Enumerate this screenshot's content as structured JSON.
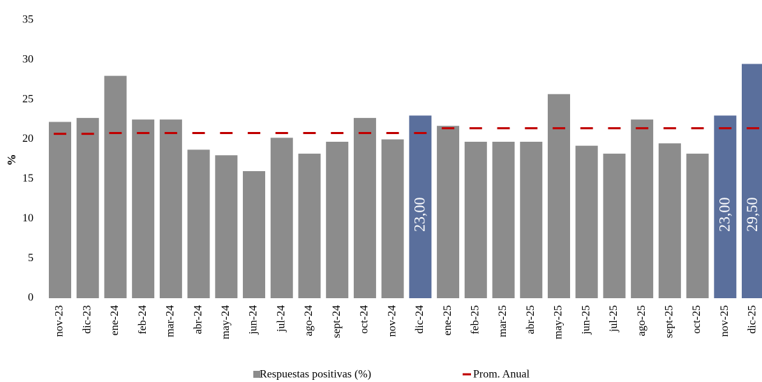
{
  "chart_data": {
    "type": "bar",
    "y_label": "%",
    "categories": [
      "nov-23",
      "dic-23",
      "ene-24",
      "feb-24",
      "mar-24",
      "abr-24",
      "may-24",
      "jun-24",
      "jul-24",
      "ago-24",
      "sept-24",
      "oct-24",
      "nov-24",
      "dic-24",
      "ene-25",
      "feb-25",
      "mar-25",
      "abr-25",
      "may-25",
      "jun-25",
      "jul-25",
      "ago-25",
      "sept-25",
      "oct-25",
      "nov-25",
      "dic-25"
    ],
    "series": [
      {
        "name": "Respuestas positivas (%)",
        "type": "bar",
        "color": "#8c8c8c",
        "colors": [
          "#8c8c8c",
          "#8c8c8c",
          "#8c8c8c",
          "#8c8c8c",
          "#8c8c8c",
          "#8c8c8c",
          "#8c8c8c",
          "#8c8c8c",
          "#8c8c8c",
          "#8c8c8c",
          "#8c8c8c",
          "#8c8c8c",
          "#8c8c8c",
          "#5a6f9c",
          "#8c8c8c",
          "#8c8c8c",
          "#8c8c8c",
          "#8c8c8c",
          "#8c8c8c",
          "#8c8c8c",
          "#8c8c8c",
          "#8c8c8c",
          "#8c8c8c",
          "#8c8c8c",
          "#5a6f9c",
          "#5a6f9c"
        ],
        "values": [
          22.2,
          22.7,
          28,
          22.5,
          22.5,
          18.7,
          18,
          16,
          20.2,
          18.2,
          19.7,
          22.7,
          20,
          23,
          21.7,
          19.7,
          19.7,
          19.7,
          25.7,
          19.2,
          18.2,
          22.5,
          19.5,
          18.2,
          23,
          29.5
        ],
        "value_labels": [
          null,
          null,
          null,
          null,
          null,
          null,
          null,
          null,
          null,
          null,
          null,
          null,
          null,
          "23,00",
          null,
          null,
          null,
          null,
          null,
          null,
          null,
          null,
          null,
          null,
          "23,00",
          "29,50"
        ]
      },
      {
        "name": "Prom. Anual",
        "type": "dash",
        "color": "#c00000",
        "values": [
          20.7,
          20.7,
          20.8,
          20.8,
          20.8,
          20.8,
          20.8,
          20.8,
          20.8,
          20.8,
          20.8,
          20.8,
          20.8,
          20.8,
          21.4,
          21.4,
          21.4,
          21.4,
          21.4,
          21.4,
          21.4,
          21.4,
          21.4,
          21.4,
          21.4,
          21.4
        ]
      }
    ],
    "ylim": [
      0,
      35
    ],
    "yticks": [
      0,
      5,
      10,
      15,
      20,
      25,
      30,
      35
    ],
    "grid": false,
    "legend": "bottom"
  }
}
